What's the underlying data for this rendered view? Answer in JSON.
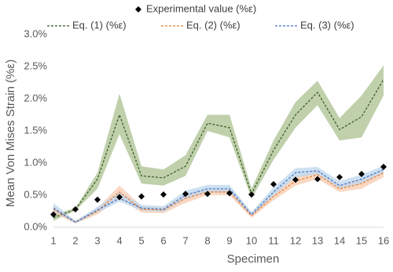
{
  "chart_data": {
    "type": "line",
    "x_label": "Specimen",
    "y_label": "Mean Von Mises Strain (%ε)",
    "x": [
      1,
      2,
      3,
      4,
      5,
      6,
      7,
      8,
      9,
      10,
      11,
      12,
      13,
      14,
      15,
      16
    ],
    "xlim": [
      1,
      16
    ],
    "xticks": [
      1,
      2,
      3,
      4,
      5,
      6,
      7,
      8,
      9,
      10,
      11,
      12,
      13,
      14,
      15,
      16
    ],
    "ylim": [
      0,
      3
    ],
    "yticks": [
      {
        "value": 0,
        "label": "0.0%"
      },
      {
        "value": 0.5,
        "label": "0.5%"
      },
      {
        "value": 1,
        "label": "1.0%"
      },
      {
        "value": 1.5,
        "label": "1.5%"
      },
      {
        "value": 2,
        "label": "2.0%"
      },
      {
        "value": 2.5,
        "label": "2.5%"
      },
      {
        "value": 3,
        "label": "3.0%"
      }
    ],
    "legend": "top",
    "series": [
      {
        "name": "Experimental value (%ε)",
        "marker": "diamond",
        "color": "#000000",
        "values": [
          0.2,
          0.28,
          0.43,
          0.47,
          0.48,
          0.51,
          0.52,
          0.52,
          0.53,
          0.51,
          0.67,
          0.74,
          0.75,
          0.78,
          0.83,
          0.94
        ]
      },
      {
        "name": "Eq. (1) (%ε)",
        "marker": "dashed",
        "color": "#375623",
        "band_color": "#a9c08f",
        "values": [
          0.15,
          0.28,
          0.75,
          1.75,
          0.8,
          0.77,
          0.95,
          1.62,
          1.55,
          0.52,
          1.2,
          1.75,
          2.1,
          1.52,
          1.72,
          2.3
        ],
        "upper": [
          0.2,
          0.3,
          0.85,
          2.08,
          0.95,
          0.9,
          1.12,
          1.75,
          1.75,
          0.6,
          1.35,
          1.95,
          2.28,
          1.7,
          2.05,
          2.52
        ],
        "lower": [
          0.1,
          0.26,
          0.6,
          1.45,
          0.68,
          0.65,
          0.8,
          1.5,
          1.4,
          0.45,
          1.05,
          1.55,
          1.9,
          1.35,
          1.4,
          2.05
        ]
      },
      {
        "name": "Eq. (2) (%ε)",
        "marker": "dashed",
        "color": "#ed7d31",
        "band_color": "#f8cbad",
        "values": [
          0.28,
          0.08,
          0.25,
          0.55,
          0.28,
          0.27,
          0.45,
          0.55,
          0.55,
          0.18,
          0.48,
          0.72,
          0.82,
          0.6,
          0.68,
          0.85
        ],
        "upper": [
          0.33,
          0.1,
          0.3,
          0.65,
          0.33,
          0.31,
          0.52,
          0.6,
          0.6,
          0.22,
          0.55,
          0.8,
          0.88,
          0.66,
          0.75,
          0.9
        ],
        "lower": [
          0.22,
          0.06,
          0.2,
          0.45,
          0.23,
          0.22,
          0.38,
          0.5,
          0.5,
          0.15,
          0.42,
          0.65,
          0.75,
          0.55,
          0.6,
          0.78
        ]
      },
      {
        "name": "Eq. (3) (%ε)",
        "marker": "dashed",
        "color": "#4472c4",
        "band_color": "#bdd7ee",
        "values": [
          0.3,
          0.08,
          0.27,
          0.45,
          0.3,
          0.28,
          0.5,
          0.6,
          0.6,
          0.2,
          0.55,
          0.85,
          0.88,
          0.65,
          0.75,
          0.9
        ],
        "upper": [
          0.38,
          0.1,
          0.32,
          0.55,
          0.35,
          0.33,
          0.57,
          0.66,
          0.66,
          0.24,
          0.62,
          0.92,
          0.94,
          0.72,
          0.82,
          0.96
        ],
        "lower": [
          0.25,
          0.06,
          0.23,
          0.4,
          0.26,
          0.24,
          0.44,
          0.54,
          0.54,
          0.17,
          0.49,
          0.78,
          0.82,
          0.6,
          0.68,
          0.84
        ]
      }
    ]
  }
}
